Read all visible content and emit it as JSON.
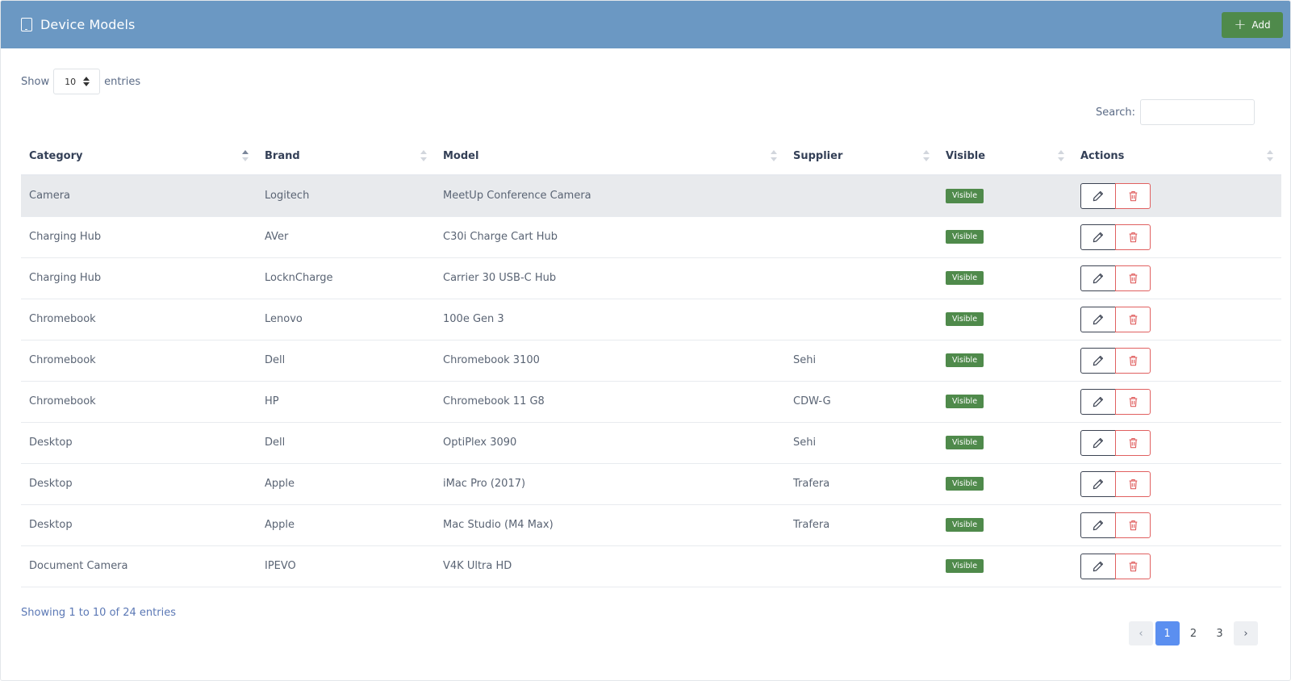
{
  "header": {
    "title": "Device Models",
    "add_label": "Add"
  },
  "length": {
    "show_label": "Show",
    "value": "10",
    "entries_label": "entries"
  },
  "search": {
    "label": "Search:",
    "value": ""
  },
  "table": {
    "columns": [
      "Category",
      "Brand",
      "Model",
      "Supplier",
      "Visible",
      "Actions"
    ],
    "rows": [
      {
        "category": "Camera",
        "brand": "Logitech",
        "model": "MeetUp Conference Camera",
        "supplier": "",
        "visible": "Visible"
      },
      {
        "category": "Charging Hub",
        "brand": "AVer",
        "model": "C30i Charge Cart Hub",
        "supplier": "",
        "visible": "Visible"
      },
      {
        "category": "Charging Hub",
        "brand": "LocknCharge",
        "model": "Carrier 30 USB-C Hub",
        "supplier": "",
        "visible": "Visible"
      },
      {
        "category": "Chromebook",
        "brand": "Lenovo",
        "model": "100e Gen 3",
        "supplier": "",
        "visible": "Visible"
      },
      {
        "category": "Chromebook",
        "brand": "Dell",
        "model": "Chromebook 3100",
        "supplier": "Sehi",
        "visible": "Visible"
      },
      {
        "category": "Chromebook",
        "brand": "HP",
        "model": "Chromebook 11 G8",
        "supplier": "CDW-G",
        "visible": "Visible"
      },
      {
        "category": "Desktop",
        "brand": "Dell",
        "model": "OptiPlex 3090",
        "supplier": "Sehi",
        "visible": "Visible"
      },
      {
        "category": "Desktop",
        "brand": "Apple",
        "model": "iMac Pro (2017)",
        "supplier": "Trafera",
        "visible": "Visible"
      },
      {
        "category": "Desktop",
        "brand": "Apple",
        "model": "Mac Studio (M4 Max)",
        "supplier": "Trafera",
        "visible": "Visible"
      },
      {
        "category": "Document Camera",
        "brand": "IPEVO",
        "model": "V4K Ultra HD",
        "supplier": "",
        "visible": "Visible"
      }
    ]
  },
  "info": "Showing 1 to 10 of 24 entries",
  "pagination": {
    "pages": [
      "1",
      "2",
      "3"
    ],
    "current": "1",
    "prev_icon": "chevron-left-icon",
    "next_icon": "chevron-right-icon"
  },
  "colors": {
    "header_bg": "#6b98c3",
    "success": "#4f8a4b",
    "danger": "#e06060",
    "active_page": "#5b8ff0"
  }
}
